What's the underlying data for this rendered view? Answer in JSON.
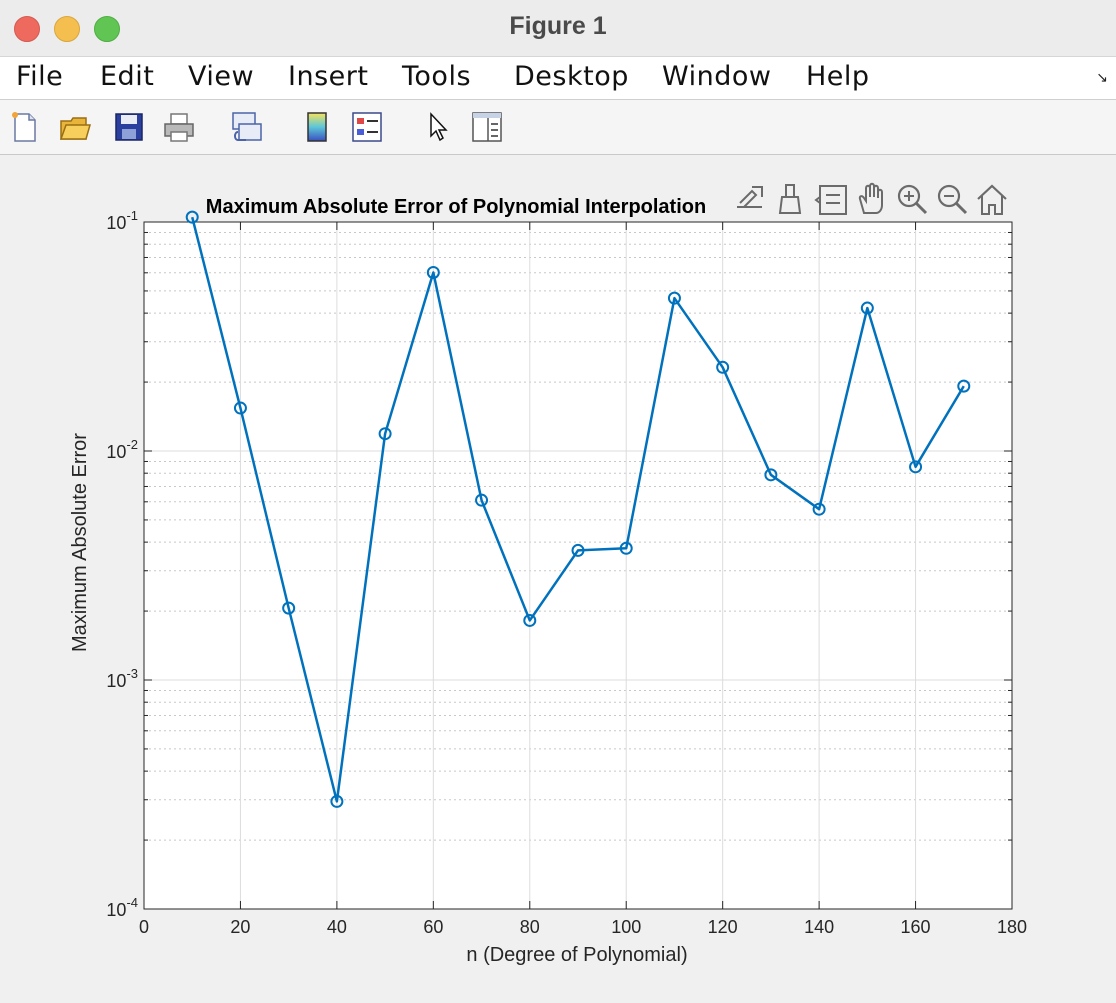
{
  "window": {
    "title": "Figure 1"
  },
  "menu": {
    "items": [
      {
        "id": "file",
        "label": "File"
      },
      {
        "id": "edit",
        "label": "Edit"
      },
      {
        "id": "view",
        "label": "View"
      },
      {
        "id": "insert",
        "label": "Insert"
      },
      {
        "id": "tools",
        "label": "Tools"
      },
      {
        "id": "desktop",
        "label": "Desktop"
      },
      {
        "id": "window",
        "label": "Window"
      },
      {
        "id": "help",
        "label": "Help"
      }
    ]
  },
  "toolbar": {
    "buttons": [
      "new-figure-icon",
      "open-file-icon",
      "save-icon",
      "print-icon",
      "link-plot-icon",
      "colorbar-icon",
      "legend-icon",
      "edit-plot-icon",
      "property-inspector-icon"
    ]
  },
  "axes_toolbar": {
    "buttons": [
      "export-icon",
      "brush-icon",
      "data-tips-icon",
      "pan-icon",
      "zoom-in-icon",
      "zoom-out-icon",
      "home-icon"
    ]
  },
  "colors": {
    "line": "#0072bd",
    "grid": "#dcdcdc",
    "background": "#ffffff"
  },
  "chart_data": {
    "type": "line",
    "title": "Maximum Absolute Error of Polynomial Interpolation",
    "xlabel": "n (Degree of Polynomial)",
    "ylabel": "Maximum Absolute Error",
    "xlim": [
      0,
      180
    ],
    "ylim": [
      0.0001,
      0.1
    ],
    "yscale": "log",
    "grid": true,
    "marker": "o",
    "x_ticks": [
      0,
      20,
      40,
      60,
      80,
      100,
      120,
      140,
      160,
      180
    ],
    "y_ticks": [
      {
        "value": 0.0001,
        "base": "10",
        "exp": "-4"
      },
      {
        "value": 0.001,
        "base": "10",
        "exp": "-3"
      },
      {
        "value": 0.01,
        "base": "10",
        "exp": "-2"
      },
      {
        "value": 0.1,
        "base": "10",
        "exp": "-1"
      }
    ],
    "series": [
      {
        "x": [
          10,
          20,
          30,
          40,
          50,
          60,
          70,
          80,
          90,
          100,
          110,
          120,
          130,
          140,
          150,
          160,
          170
        ],
        "y": [
          0.105,
          0.0154,
          0.00206,
          0.000295,
          0.0119,
          0.0602,
          0.0061,
          0.00182,
          0.00368,
          0.00376,
          0.0465,
          0.0232,
          0.00787,
          0.00557,
          0.0421,
          0.00853,
          0.0192
        ]
      }
    ]
  }
}
